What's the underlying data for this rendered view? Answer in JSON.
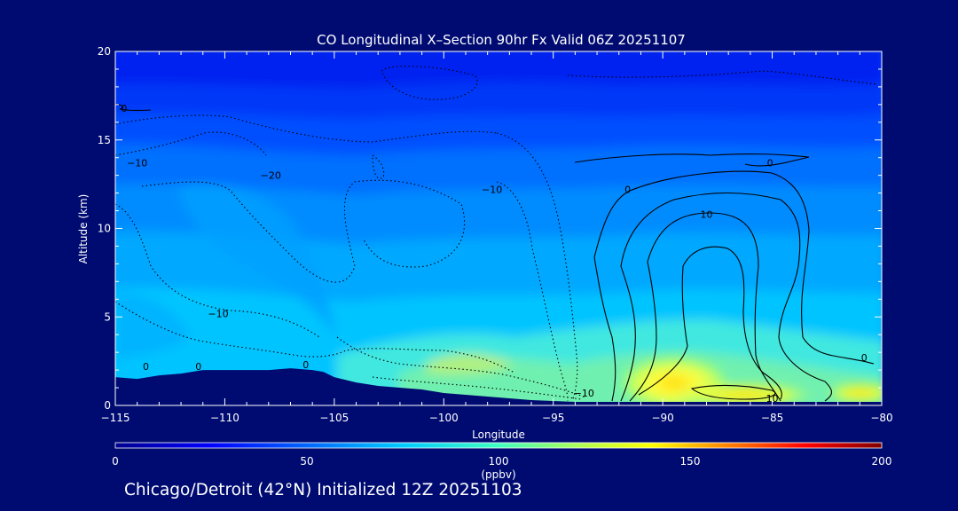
{
  "footer": "Chicago/Detroit (42°N) Initialized 12Z 20251103",
  "colors": {
    "background": "#000b72",
    "text": "#ffffff",
    "contour": "#000000"
  },
  "chart_data": {
    "type": "heatmap",
    "title": "CO Longitudinal X–Section 90hr  Fx Valid 06Z 20251107",
    "xlabel": "Longitude",
    "ylabel": "Altitude (km)",
    "xlim": [
      -115,
      -80
    ],
    "ylim": [
      0,
      20
    ],
    "x_ticks": [
      -115,
      -110,
      -105,
      -100,
      -95,
      -90,
      -85,
      -80
    ],
    "x_tick_labels": [
      "−115",
      "−110",
      "−105",
      "−100",
      "−95",
      "−90",
      "−85",
      "−80"
    ],
    "y_ticks": [
      0,
      5,
      10,
      15,
      20
    ],
    "y_tick_labels": [
      "0",
      "5",
      "10",
      "15",
      "20"
    ],
    "colorbar": {
      "label": "(ppbv)",
      "range": [
        0,
        200
      ],
      "ticks": [
        0,
        50,
        100,
        150,
        200
      ],
      "tick_labels": [
        "0",
        "50",
        "100",
        "150",
        "200"
      ],
      "colormap": [
        "#00008f",
        "#0000ff",
        "#0080ff",
        "#00ffff",
        "#80ff80",
        "#ffff00",
        "#ff8000",
        "#ff0000",
        "#800000"
      ]
    },
    "terrain_km": [
      [
        -115,
        1.6
      ],
      [
        -114,
        1.5
      ],
      [
        -113,
        1.7
      ],
      [
        -112,
        1.8
      ],
      [
        -111,
        2.0
      ],
      [
        -110,
        2.0
      ],
      [
        -109,
        2.0
      ],
      [
        -108,
        2.0
      ],
      [
        -107,
        2.1
      ],
      [
        -106,
        2.0
      ],
      [
        -105.5,
        1.9
      ],
      [
        -105,
        1.6
      ],
      [
        -104,
        1.3
      ],
      [
        -103,
        1.1
      ],
      [
        -102,
        1.0
      ],
      [
        -101,
        0.9
      ],
      [
        -100,
        0.7
      ],
      [
        -99,
        0.6
      ],
      [
        -98,
        0.5
      ],
      [
        -97,
        0.4
      ],
      [
        -96,
        0.3
      ],
      [
        -95,
        0.25
      ],
      [
        -94,
        0.2
      ],
      [
        -92,
        0.2
      ],
      [
        -90,
        0.2
      ],
      [
        -85,
        0.2
      ],
      [
        -80,
        0.2
      ]
    ],
    "contour_labels": [
      {
        "text": "0",
        "x": -114.6,
        "y": 16.6
      },
      {
        "text": "−10",
        "x": -114.0,
        "y": 13.5
      },
      {
        "text": "−20",
        "x": -107.9,
        "y": 12.8
      },
      {
        "text": "−10",
        "x": -97.8,
        "y": 12.0
      },
      {
        "text": "0",
        "x": -91.6,
        "y": 12.0
      },
      {
        "text": "0",
        "x": -85.1,
        "y": 13.5
      },
      {
        "text": "10",
        "x": -88.0,
        "y": 10.6
      },
      {
        "text": "−10",
        "x": -110.3,
        "y": 5.0
      },
      {
        "text": "0",
        "x": -113.6,
        "y": 2.0
      },
      {
        "text": "0",
        "x": -111.2,
        "y": 2.0
      },
      {
        "text": "0",
        "x": -106.3,
        "y": 2.1
      },
      {
        "text": "−10",
        "x": -93.6,
        "y": 0.5
      },
      {
        "text": "10",
        "x": -85.0,
        "y": 0.2
      },
      {
        "text": "0",
        "x": -80.8,
        "y": 2.5
      }
    ]
  }
}
